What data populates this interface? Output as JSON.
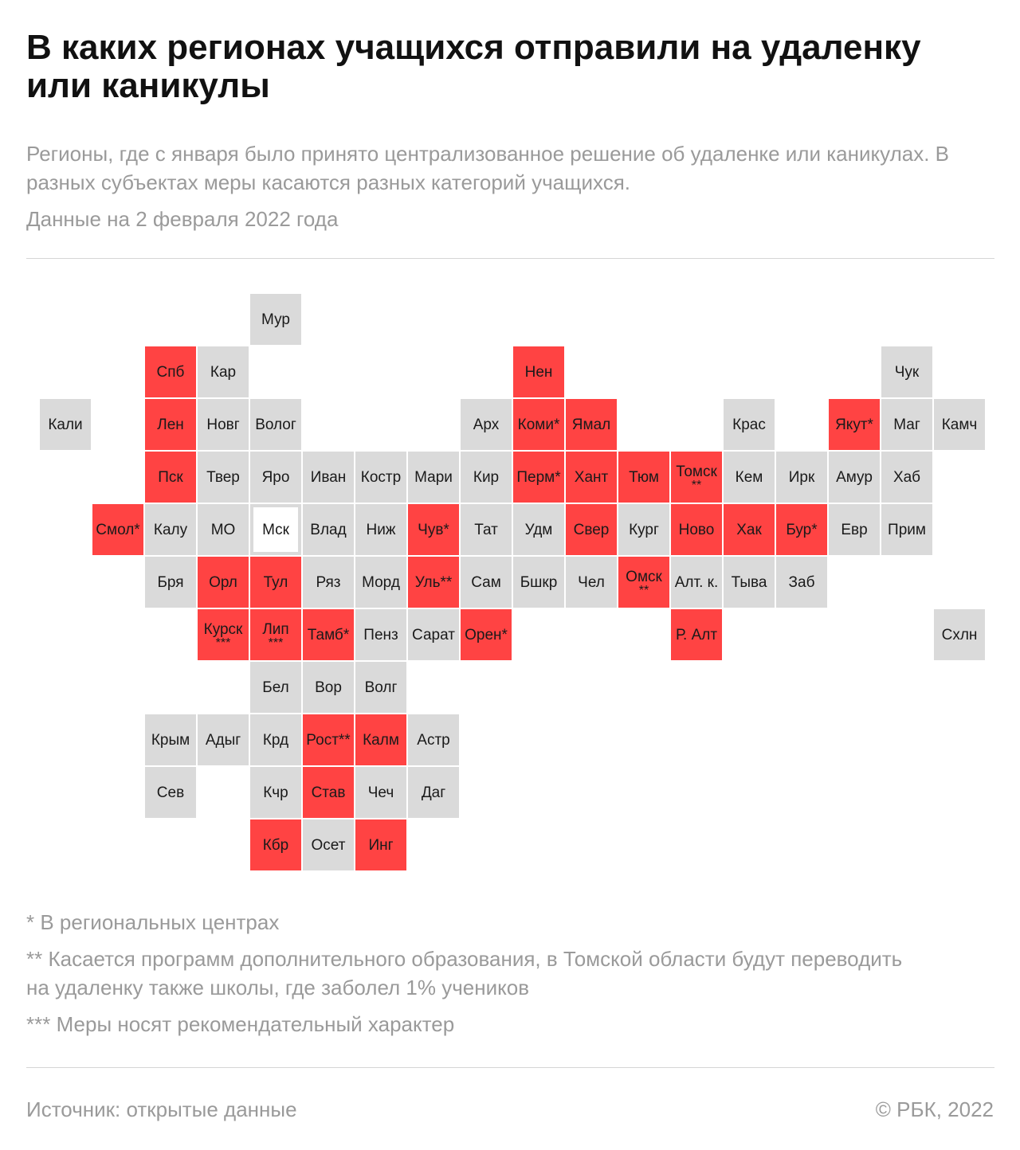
{
  "header": {
    "title": "В каких регионах учащихся отправили на удаленку или каникулы",
    "subtitle": "Регионы, где с января было принято централизованное решение об удаленке или каникулах. В разных субъектах меры касаются разных категорий учащихся.",
    "date": "Данные на 2 февраля 2022 года"
  },
  "colors": {
    "affected": "#ff4343",
    "not_affected": "#dadada",
    "text": "#1a1a1a",
    "muted": "#9a9a9a"
  },
  "regions": [
    {
      "label": "Мур",
      "status": "no",
      "col": 4,
      "row": 0
    },
    {
      "label": "Спб",
      "status": "yes",
      "col": 2,
      "row": 1
    },
    {
      "label": "Кар",
      "status": "no",
      "col": 3,
      "row": 1
    },
    {
      "label": "Нен",
      "status": "yes",
      "col": 9,
      "row": 1
    },
    {
      "label": "Чук",
      "status": "no",
      "col": 16,
      "row": 1
    },
    {
      "label": "Кали",
      "status": "no",
      "col": 0,
      "row": 2
    },
    {
      "label": "Лен",
      "status": "yes",
      "col": 2,
      "row": 2
    },
    {
      "label": "Новг",
      "status": "no",
      "col": 3,
      "row": 2
    },
    {
      "label": "Волог",
      "status": "no",
      "col": 4,
      "row": 2
    },
    {
      "label": "Арх",
      "status": "no",
      "col": 8,
      "row": 2
    },
    {
      "label": "Коми*",
      "status": "yes",
      "col": 9,
      "row": 2
    },
    {
      "label": "Ямал",
      "status": "yes",
      "col": 10,
      "row": 2
    },
    {
      "label": "Крас",
      "status": "no",
      "col": 13,
      "row": 2
    },
    {
      "label": "Якут*",
      "status": "yes",
      "col": 15,
      "row": 2
    },
    {
      "label": "Маг",
      "status": "no",
      "col": 16,
      "row": 2
    },
    {
      "label": "Камч",
      "status": "no",
      "col": 17,
      "row": 2
    },
    {
      "label": "Пск",
      "status": "yes",
      "col": 2,
      "row": 3
    },
    {
      "label": "Твер",
      "status": "no",
      "col": 3,
      "row": 3
    },
    {
      "label": "Яро",
      "status": "no",
      "col": 4,
      "row": 3
    },
    {
      "label": "Иван",
      "status": "no",
      "col": 5,
      "row": 3
    },
    {
      "label": "Костр",
      "status": "no",
      "col": 6,
      "row": 3
    },
    {
      "label": "Мари",
      "status": "no",
      "col": 7,
      "row": 3
    },
    {
      "label": "Кир",
      "status": "no",
      "col": 8,
      "row": 3
    },
    {
      "label": "Перм*",
      "status": "yes",
      "col": 9,
      "row": 3
    },
    {
      "label": "Хант",
      "status": "yes",
      "col": 10,
      "row": 3
    },
    {
      "label": "Тюм",
      "status": "yes",
      "col": 11,
      "row": 3
    },
    {
      "label": "Томск",
      "mark": "**",
      "status": "yes",
      "col": 12,
      "row": 3
    },
    {
      "label": "Кем",
      "status": "no",
      "col": 13,
      "row": 3
    },
    {
      "label": "Ирк",
      "status": "no",
      "col": 14,
      "row": 3
    },
    {
      "label": "Амур",
      "status": "no",
      "col": 15,
      "row": 3
    },
    {
      "label": "Хаб",
      "status": "no",
      "col": 16,
      "row": 3
    },
    {
      "label": "Смол*",
      "status": "yes",
      "col": 1,
      "row": 4
    },
    {
      "label": "Калу",
      "status": "no",
      "col": 2,
      "row": 4
    },
    {
      "label": "МО",
      "status": "no",
      "col": 3,
      "row": 4
    },
    {
      "label": "Мск",
      "status": "no",
      "col": 4,
      "row": 4,
      "outlined": true
    },
    {
      "label": "Влад",
      "status": "no",
      "col": 5,
      "row": 4
    },
    {
      "label": "Ниж",
      "status": "no",
      "col": 6,
      "row": 4
    },
    {
      "label": "Чув*",
      "status": "yes",
      "col": 7,
      "row": 4
    },
    {
      "label": "Тат",
      "status": "no",
      "col": 8,
      "row": 4
    },
    {
      "label": "Удм",
      "status": "no",
      "col": 9,
      "row": 4
    },
    {
      "label": "Свер",
      "status": "yes",
      "col": 10,
      "row": 4
    },
    {
      "label": "Кург",
      "status": "no",
      "col": 11,
      "row": 4
    },
    {
      "label": "Ново",
      "status": "yes",
      "col": 12,
      "row": 4
    },
    {
      "label": "Хак",
      "status": "yes",
      "col": 13,
      "row": 4
    },
    {
      "label": "Бур*",
      "status": "yes",
      "col": 14,
      "row": 4
    },
    {
      "label": "Евр",
      "status": "no",
      "col": 15,
      "row": 4
    },
    {
      "label": "Прим",
      "status": "no",
      "col": 16,
      "row": 4
    },
    {
      "label": "Бря",
      "status": "no",
      "col": 2,
      "row": 5
    },
    {
      "label": "Орл",
      "status": "yes",
      "col": 3,
      "row": 5
    },
    {
      "label": "Тул",
      "status": "yes",
      "col": 4,
      "row": 5
    },
    {
      "label": "Ряз",
      "status": "no",
      "col": 5,
      "row": 5
    },
    {
      "label": "Морд",
      "status": "no",
      "col": 6,
      "row": 5
    },
    {
      "label": "Уль**",
      "status": "yes",
      "col": 7,
      "row": 5
    },
    {
      "label": "Сам",
      "status": "no",
      "col": 8,
      "row": 5
    },
    {
      "label": "Бшкр",
      "status": "no",
      "col": 9,
      "row": 5
    },
    {
      "label": "Чел",
      "status": "no",
      "col": 10,
      "row": 5
    },
    {
      "label": "Омск",
      "mark": "**",
      "status": "yes",
      "col": 11,
      "row": 5
    },
    {
      "label": "Алт. к.",
      "status": "no",
      "col": 12,
      "row": 5
    },
    {
      "label": "Тыва",
      "status": "no",
      "col": 13,
      "row": 5
    },
    {
      "label": "Заб",
      "status": "no",
      "col": 14,
      "row": 5
    },
    {
      "label": "Курск",
      "mark": "***",
      "status": "yes",
      "col": 3,
      "row": 6
    },
    {
      "label": "Лип",
      "mark": "***",
      "status": "yes",
      "col": 4,
      "row": 6
    },
    {
      "label": "Тамб*",
      "status": "yes",
      "col": 5,
      "row": 6
    },
    {
      "label": "Пенз",
      "status": "no",
      "col": 6,
      "row": 6
    },
    {
      "label": "Сарат",
      "status": "no",
      "col": 7,
      "row": 6
    },
    {
      "label": "Орен*",
      "status": "yes",
      "col": 8,
      "row": 6
    },
    {
      "label": "Р. Алт",
      "status": "yes",
      "col": 12,
      "row": 6
    },
    {
      "label": "Схлн",
      "status": "no",
      "col": 17,
      "row": 6
    },
    {
      "label": "Бел",
      "status": "no",
      "col": 4,
      "row": 7
    },
    {
      "label": "Вор",
      "status": "no",
      "col": 5,
      "row": 7
    },
    {
      "label": "Волг",
      "status": "no",
      "col": 6,
      "row": 7
    },
    {
      "label": "Крым",
      "status": "no",
      "col": 2,
      "row": 8
    },
    {
      "label": "Адыг",
      "status": "no",
      "col": 3,
      "row": 8
    },
    {
      "label": "Крд",
      "status": "no",
      "col": 4,
      "row": 8
    },
    {
      "label": "Рост**",
      "status": "yes",
      "col": 5,
      "row": 8
    },
    {
      "label": "Калм",
      "status": "yes",
      "col": 6,
      "row": 8
    },
    {
      "label": "Астр",
      "status": "no",
      "col": 7,
      "row": 8
    },
    {
      "label": "Сев",
      "status": "no",
      "col": 2,
      "row": 9
    },
    {
      "label": "Кчр",
      "status": "no",
      "col": 4,
      "row": 9
    },
    {
      "label": "Став",
      "status": "yes",
      "col": 5,
      "row": 9
    },
    {
      "label": "Чеч",
      "status": "no",
      "col": 6,
      "row": 9
    },
    {
      "label": "Даг",
      "status": "no",
      "col": 7,
      "row": 9
    },
    {
      "label": "Кбр",
      "status": "yes",
      "col": 4,
      "row": 10
    },
    {
      "label": "Осет",
      "status": "no",
      "col": 5,
      "row": 10
    },
    {
      "label": "Инг",
      "status": "yes",
      "col": 6,
      "row": 10
    }
  ],
  "notes": [
    "* В региональных центрах",
    "** Касается программ дополнительного образования, в Томской области будут переводить на удаленку также школы, где заболел 1% учеников",
    "*** Меры носят рекомендательный характер"
  ],
  "footer": {
    "source": "Источник:  открытые данные",
    "copyright": "©  РБК, 2022"
  }
}
